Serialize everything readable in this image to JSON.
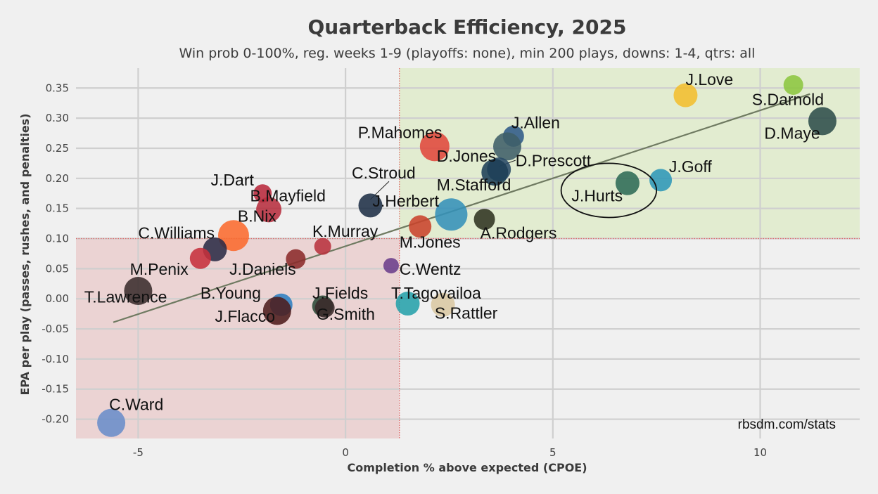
{
  "chart_data": {
    "type": "scatter",
    "title": "Quarterback Efficiency, 2025",
    "subtitle": "Win prob 0-100%, reg. weeks 1-9 (playoffs: none), min 200 plays, downs: 1-4, qtrs: all",
    "xlabel": "Completion % above expected (CPOE)",
    "ylabel": "EPA per play (passes, rushes, and penalties)",
    "xlim": [
      -6.5,
      12.4
    ],
    "ylim": [
      -0.232,
      0.383
    ],
    "xticks": [
      -5,
      0,
      5,
      10
    ],
    "xtick_labels": [
      "-5",
      "0",
      "5",
      "10"
    ],
    "yticks": [
      -0.2,
      -0.15,
      -0.1,
      -0.05,
      0.0,
      0.05,
      0.1,
      0.15,
      0.2,
      0.25,
      0.3,
      0.35
    ],
    "ytick_labels": [
      "-0.20",
      "-0.15",
      "-0.10",
      "-0.05",
      "0.00",
      "0.05",
      "0.10",
      "0.15",
      "0.20",
      "0.25",
      "0.30",
      "0.35"
    ],
    "grid": true,
    "credit": "rbsdm.com/stats",
    "regions": [
      {
        "name": "good",
        "x_from": 1.3,
        "x_to": 12.4,
        "y_from": 0.1,
        "y_to": 0.383,
        "color": "#e2ecd0"
      },
      {
        "name": "bad",
        "x_from": -6.5,
        "x_to": 1.3,
        "y_from": -0.232,
        "y_to": 0.1,
        "color": "#ebd3d3"
      }
    ],
    "trend_line": {
      "x": [
        -5.6,
        11.2
      ],
      "y": [
        -0.039,
        0.34
      ],
      "color": "#6f7a61"
    },
    "highlight": {
      "name": "J.Hurts",
      "cx": 6.35,
      "cy": 0.18,
      "rx": 1.15,
      "ry": 0.045
    },
    "points": [
      {
        "name": "J.Love",
        "x": 8.2,
        "y": 0.338,
        "r": 17,
        "color": "#f2be2d"
      },
      {
        "name": "S.Darnold",
        "x": 10.8,
        "y": 0.355,
        "r": 14,
        "color": "#8cc63f"
      },
      {
        "name": "D.Maye",
        "x": 11.5,
        "y": 0.295,
        "r": 20,
        "color": "#2e4d4a"
      },
      {
        "name": "J.Allen",
        "x": 4.05,
        "y": 0.27,
        "r": 15,
        "color": "#2f5a88"
      },
      {
        "name": "D.Jones",
        "x": 3.9,
        "y": 0.253,
        "r": 20,
        "color": "#3f5f68"
      },
      {
        "name": "P.Mahomes",
        "x": 2.15,
        "y": 0.253,
        "r": 21,
        "color": "#e0483b"
      },
      {
        "name": "D.Prescott",
        "x": 3.7,
        "y": 0.215,
        "r": 17,
        "color": "#294a66"
      },
      {
        "name": "M.Stafford",
        "x": 3.6,
        "y": 0.21,
        "r": 19,
        "color": "#1d3f56"
      },
      {
        "name": "J.Goff",
        "x": 7.6,
        "y": 0.197,
        "r": 16,
        "color": "#2e97b7"
      },
      {
        "name": "J.Hurts",
        "x": 6.8,
        "y": 0.192,
        "r": 17,
        "color": "#2d6b55"
      },
      {
        "name": "C.Stroud",
        "x": 0.6,
        "y": 0.155,
        "r": 17,
        "color": "#1e2f45"
      },
      {
        "name": "J.Herbert",
        "x": 2.55,
        "y": 0.14,
        "r": 23,
        "color": "#3491b8"
      },
      {
        "name": "A.Rodgers",
        "x": 3.35,
        "y": 0.132,
        "r": 15,
        "color": "#2f3320"
      },
      {
        "name": "M.Jones",
        "x": 1.8,
        "y": 0.12,
        "r": 16,
        "color": "#c9432b"
      },
      {
        "name": "J.Dart",
        "x": -2.0,
        "y": 0.175,
        "r": 13,
        "color": "#b8283b"
      },
      {
        "name": "B.Mayfield",
        "x": -1.85,
        "y": 0.148,
        "r": 18,
        "color": "#b62e3e"
      },
      {
        "name": "B.Nix",
        "x": -2.7,
        "y": 0.105,
        "r": 22,
        "color": "#fb6a2d"
      },
      {
        "name": "C.Williams",
        "x": -3.15,
        "y": 0.082,
        "r": 17,
        "color": "#2b2b45"
      },
      {
        "name": "M.Penix",
        "x": -3.5,
        "y": 0.067,
        "r": 15,
        "color": "#c6303c"
      },
      {
        "name": "J.Daniels",
        "x": -1.2,
        "y": 0.066,
        "r": 14,
        "color": "#8b2a2a"
      },
      {
        "name": "K.Murray",
        "x": -0.55,
        "y": 0.087,
        "r": 12,
        "color": "#b8323e"
      },
      {
        "name": "C.Wentz",
        "x": 1.1,
        "y": 0.055,
        "r": 11,
        "color": "#6b3d8b"
      },
      {
        "name": "T.Lawrence",
        "x": -5.0,
        "y": 0.013,
        "r": 20,
        "color": "#3a2c2c"
      },
      {
        "name": "B.Young",
        "x": -1.55,
        "y": -0.01,
        "r": 16,
        "color": "#2f7fc1"
      },
      {
        "name": "J.Flacco",
        "x": -1.65,
        "y": -0.02,
        "r": 20,
        "color": "#4d1c1c"
      },
      {
        "name": "J.Fields",
        "x": -0.55,
        "y": -0.012,
        "r": 15,
        "color": "#2c4a38"
      },
      {
        "name": "G.Smith",
        "x": -0.5,
        "y": -0.015,
        "r": 14,
        "color": "#3a2a2a"
      },
      {
        "name": "T.Tagovailoa",
        "x": 1.5,
        "y": -0.008,
        "r": 17,
        "color": "#25a1aa"
      },
      {
        "name": "S.Rattler",
        "x": 2.35,
        "y": -0.01,
        "r": 17,
        "color": "#d9c7a2"
      },
      {
        "name": "C.Ward",
        "x": -5.65,
        "y": -0.206,
        "r": 20,
        "color": "#6a8dc9"
      }
    ],
    "labels": [
      {
        "name": "J.Love",
        "x": 8.2,
        "y": 0.355
      },
      {
        "name": "S.Darnold",
        "x": 9.8,
        "y": 0.322
      },
      {
        "name": "D.Maye",
        "x": 10.1,
        "y": 0.266
      },
      {
        "name": "J.Allen",
        "x": 4.0,
        "y": 0.283
      },
      {
        "name": "P.Mahomes",
        "x": 0.3,
        "y": 0.267
      },
      {
        "name": "D.Jones",
        "x": 2.2,
        "y": 0.228
      },
      {
        "name": "D.Prescott",
        "x": 4.1,
        "y": 0.22
      },
      {
        "name": "J.Goff",
        "x": 7.8,
        "y": 0.21
      },
      {
        "name": "M.Stafford",
        "x": 2.2,
        "y": 0.18
      },
      {
        "name": "J.Hurts",
        "x": 5.45,
        "y": 0.162
      },
      {
        "name": "C.Stroud",
        "x": 0.15,
        "y": 0.2
      },
      {
        "name": "J.Herbert",
        "x": 0.65,
        "y": 0.153
      },
      {
        "name": "A.Rodgers",
        "x": 3.25,
        "y": 0.1
      },
      {
        "name": "M.Jones",
        "x": 1.3,
        "y": 0.085
      },
      {
        "name": "J.Dart",
        "x": -3.25,
        "y": 0.188
      },
      {
        "name": "B.Mayfield",
        "x": -2.3,
        "y": 0.162
      },
      {
        "name": "B.Nix",
        "x": -2.6,
        "y": 0.128
      },
      {
        "name": "C.Williams",
        "x": -5.0,
        "y": 0.1
      },
      {
        "name": "K.Murray",
        "x": -0.8,
        "y": 0.103
      },
      {
        "name": "M.Penix",
        "x": -5.2,
        "y": 0.04
      },
      {
        "name": "J.Daniels",
        "x": -2.8,
        "y": 0.04
      },
      {
        "name": "C.Wentz",
        "x": 1.3,
        "y": 0.04
      },
      {
        "name": "T.Lawrence",
        "x": -6.3,
        "y": -0.006
      },
      {
        "name": "B.Young",
        "x": -3.5,
        "y": 0.0
      },
      {
        "name": "J.Fields",
        "x": -0.8,
        "y": 0.0
      },
      {
        "name": "T.Tagovailoa",
        "x": 1.1,
        "y": 0.0
      },
      {
        "name": "J.Flacco",
        "x": -3.15,
        "y": -0.038
      },
      {
        "name": "G.Smith",
        "x": -0.7,
        "y": -0.035
      },
      {
        "name": "S.Rattler",
        "x": 2.15,
        "y": -0.033
      },
      {
        "name": "C.Ward",
        "x": -5.7,
        "y": -0.185
      }
    ],
    "connectors": [
      {
        "name": "C.Stroud",
        "from": [
          0.6,
          0.165
        ],
        "to": [
          1.05,
          0.195
        ]
      },
      {
        "name": "D.Prescott",
        "from": [
          3.7,
          0.22
        ],
        "to": [
          4.1,
          0.23
        ]
      }
    ]
  }
}
